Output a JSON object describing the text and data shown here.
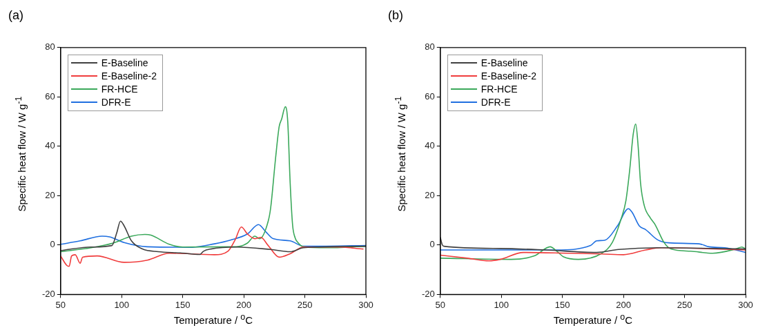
{
  "chart_data": [
    {
      "type": "line",
      "title": "(a)",
      "xlabel": "Temperature / $^{o}$C",
      "ylabel": "Specific heat flow / W g$^{-1}$",
      "xlim": [
        50,
        300
      ],
      "ylim": [
        -20,
        80
      ],
      "xticks": [
        50,
        100,
        150,
        200,
        250,
        300
      ],
      "yticks": [
        -20,
        0,
        20,
        40,
        60,
        80
      ],
      "legend": "top left",
      "marker": "none",
      "line_style": "solid",
      "series": [
        {
          "name": "E-Baseline",
          "color": "#404040",
          "x": [
            50,
            56,
            75,
            92,
            96,
            99,
            102,
            108,
            117,
            130,
            148,
            164,
            167,
            173,
            194,
            222,
            238,
            249,
            300
          ],
          "values": [
            -2.3,
            -1.8,
            -0.8,
            -0.2,
            5,
            9.7,
            7.8,
            1.7,
            -1.6,
            -2.7,
            -3.2,
            -3.8,
            -2.5,
            -1.6,
            -0.8,
            -1.8,
            -2.7,
            -1.1,
            -0.5
          ]
        },
        {
          "name": "E-Baseline-2",
          "color": "#f03c3c",
          "x": [
            50,
            55,
            57,
            59,
            62,
            66,
            68,
            80,
            102,
            121,
            139,
            176,
            187,
            193,
            198,
            203,
            209,
            214,
            220,
            229,
            238,
            249,
            277,
            298
          ],
          "values": [
            -4.4,
            -8.2,
            -8.6,
            -4.4,
            -3.9,
            -7.4,
            -4.9,
            -4.4,
            -7,
            -6.1,
            -3.3,
            -3.9,
            -2.5,
            2.2,
            7.3,
            4.5,
            2.6,
            3.1,
            -0.2,
            -4.9,
            -3.5,
            -0.8,
            -0.8,
            -1.6
          ]
        },
        {
          "name": "FR-HCE",
          "color": "#3aa85a",
          "x": [
            50,
            75,
            93,
            108,
            119,
            124,
            139,
            150,
            194,
            203,
            209,
            213,
            220,
            222,
            226,
            229,
            231,
            234,
            236,
            238,
            240,
            242,
            244,
            249,
            268,
            300
          ],
          "values": [
            -2.7,
            -1.1,
            0.8,
            3.6,
            4.3,
            4,
            0.3,
            -0.8,
            -0.7,
            0.8,
            3.6,
            2.6,
            9.7,
            15,
            35,
            48,
            51,
            56,
            50,
            25,
            8,
            3,
            1.2,
            -0.7,
            -1.1,
            -0.5
          ]
        },
        {
          "name": "DFR-E",
          "color": "#1f6fe0",
          "x": [
            50,
            66,
            84,
            90,
            102,
            121,
            158,
            176,
            189,
            203,
            212,
            218,
            224,
            238,
            249,
            300
          ],
          "values": [
            0.3,
            1.7,
            3.6,
            3.3,
            1,
            -0.7,
            -0.9,
            0.5,
            2,
            4.5,
            8.3,
            5.4,
            2.6,
            1.7,
            -0.5,
            -0.2
          ]
        }
      ]
    },
    {
      "type": "line",
      "title": "(b)",
      "xlabel": "Temperature / $^{o}$C",
      "ylabel": "Specific heat flow / W g$^{-1}$",
      "xlim": [
        50,
        300
      ],
      "ylim": [
        -20,
        80
      ],
      "xticks": [
        50,
        100,
        150,
        200,
        250,
        300
      ],
      "yticks": [
        -20,
        0,
        20,
        40,
        60,
        80
      ],
      "legend": "top left",
      "marker": "none",
      "line_style": "solid",
      "series": [
        {
          "name": "E-Baseline",
          "color": "#404040",
          "x": [
            50,
            51.6,
            53,
            99,
            136,
            178,
            196,
            228,
            300
          ],
          "values": [
            3.1,
            0.1,
            -0.5,
            -1.4,
            -2,
            -3,
            -1.8,
            -1.1,
            -1.6
          ]
        },
        {
          "name": "E-Baseline-2",
          "color": "#f03c3c",
          "x": [
            50,
            72,
            90,
            99,
            118,
            154,
            182,
            200,
            218,
            231,
            264,
            300
          ],
          "values": [
            -4.1,
            -5.3,
            -6.4,
            -5.8,
            -3,
            -3.3,
            -3.6,
            -3.9,
            -2,
            -1.1,
            -1.4,
            -2
          ]
        },
        {
          "name": "FR-HCE",
          "color": "#3aa85a",
          "x": [
            50,
            108,
            127,
            140,
            145,
            151,
            163,
            182,
            191,
            198,
            202,
            205,
            208,
            210,
            212,
            214,
            217,
            222,
            226,
            233,
            239,
            255,
            273,
            292,
            297,
            300
          ],
          "values": [
            -5.3,
            -5.8,
            -4.4,
            -0.7,
            -2.3,
            -4.8,
            -5.8,
            -3.4,
            1.2,
            10.5,
            18,
            30,
            45,
            49,
            40,
            25,
            16,
            11,
            8.2,
            1.2,
            -1.6,
            -2.5,
            -3.3,
            -1.6,
            -0.8,
            -1.6
          ]
        },
        {
          "name": "DFR-E",
          "color": "#1f6fe0",
          "x": [
            50,
            90,
            145,
            173,
            178,
            185,
            195,
            204,
            207,
            213,
            218,
            228,
            237,
            262,
            270,
            283,
            300
          ],
          "values": [
            -2,
            -2,
            -2,
            -0.2,
            1.7,
            2,
            7.7,
            14.7,
            13.3,
            7.7,
            6.3,
            2.1,
            0.9,
            0.5,
            -0.7,
            -1.1,
            -3
          ]
        }
      ]
    }
  ]
}
